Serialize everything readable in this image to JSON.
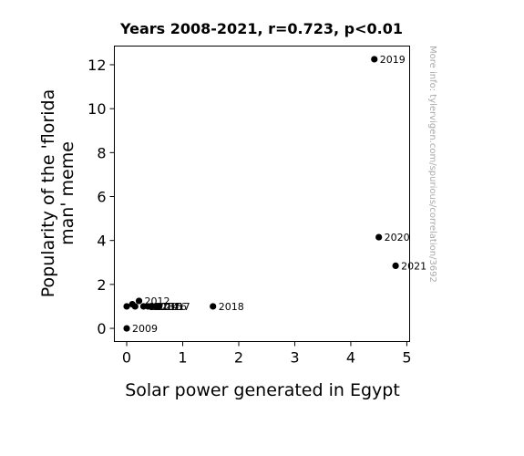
{
  "credit": "More info: tylervigen.com/spurious/correlation/3692",
  "chart_data": {
    "type": "scatter",
    "title": "Years 2008-2021, r=0.723, p<0.01",
    "xlabel": "Solar power generated in Egypt",
    "ylabel_lines": [
      "Popularity of the 'florida",
      "man' meme"
    ],
    "xlim": [
      -0.22,
      5.05
    ],
    "ylim": [
      -0.6,
      12.85
    ],
    "xticks": [
      0,
      1,
      2,
      3,
      4,
      5
    ],
    "yticks": [
      0,
      2,
      4,
      6,
      8,
      10,
      12
    ],
    "grid": false,
    "marker_color": "#000000",
    "points": [
      {
        "x": 0.0,
        "y": 1.0,
        "label": ""
      },
      {
        "x": 0.0,
        "y": 0.0,
        "label": "2009"
      },
      {
        "x": 0.1,
        "y": 1.1,
        "label": ""
      },
      {
        "x": 0.15,
        "y": 1.0,
        "label": ""
      },
      {
        "x": 0.22,
        "y": 1.25,
        "label": "2012"
      },
      {
        "x": 0.3,
        "y": 1.0,
        "label": "2013"
      },
      {
        "x": 0.38,
        "y": 1.0,
        "label": "2014"
      },
      {
        "x": 0.45,
        "y": 1.0,
        "label": "2015"
      },
      {
        "x": 0.52,
        "y": 1.0,
        "label": "2016"
      },
      {
        "x": 0.58,
        "y": 1.0,
        "label": "2017"
      },
      {
        "x": 1.54,
        "y": 1.0,
        "label": "2018"
      },
      {
        "x": 4.42,
        "y": 12.25,
        "label": "2019"
      },
      {
        "x": 4.5,
        "y": 4.15,
        "label": "2020"
      },
      {
        "x": 4.8,
        "y": 2.85,
        "label": "2021"
      }
    ]
  }
}
